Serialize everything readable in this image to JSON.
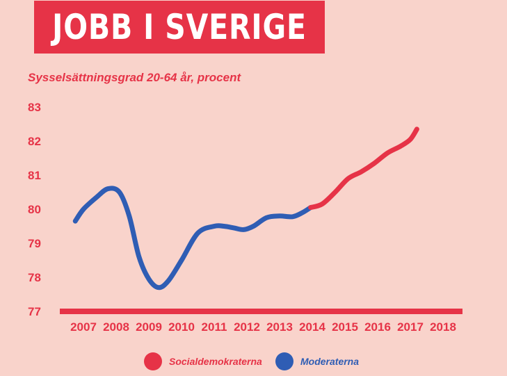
{
  "header": {
    "title": "JOBB I SVERIGE"
  },
  "colors": {
    "background": "#f9d3cb",
    "accent": "#e63347",
    "blue": "#2f5db4"
  },
  "chart_data": {
    "type": "line",
    "title": "JOBB I SVERIGE",
    "ylabel": "Sysselsättningsgrad 20-64 år, procent",
    "xlabel": "",
    "ylim": [
      77,
      83
    ],
    "y_ticks": [
      "83",
      "82",
      "81",
      "80",
      "79",
      "78",
      "77"
    ],
    "x_ticks": [
      "2007",
      "2008",
      "2009",
      "2010",
      "2011",
      "2012",
      "2013",
      "2014",
      "2015",
      "2016",
      "2017",
      "2018"
    ],
    "series": [
      {
        "name": "Moderaterna",
        "color": "#2f5db4",
        "points": [
          [
            2006.75,
            79.65
          ],
          [
            2007.0,
            80.0
          ],
          [
            2007.4,
            80.35
          ],
          [
            2007.75,
            80.6
          ],
          [
            2008.1,
            80.5
          ],
          [
            2008.4,
            79.8
          ],
          [
            2008.7,
            78.6
          ],
          [
            2009.0,
            77.95
          ],
          [
            2009.3,
            77.7
          ],
          [
            2009.6,
            77.9
          ],
          [
            2010.0,
            78.5
          ],
          [
            2010.5,
            79.3
          ],
          [
            2011.0,
            79.5
          ],
          [
            2011.3,
            79.5
          ],
          [
            2011.6,
            79.45
          ],
          [
            2011.9,
            79.4
          ],
          [
            2012.2,
            79.5
          ],
          [
            2012.6,
            79.75
          ],
          [
            2013.0,
            79.8
          ],
          [
            2013.4,
            79.78
          ],
          [
            2013.7,
            79.9
          ],
          [
            2013.95,
            80.05
          ]
        ]
      },
      {
        "name": "Socialdemokraterna",
        "color": "#e63347",
        "points": [
          [
            2013.95,
            80.05
          ],
          [
            2014.3,
            80.15
          ],
          [
            2014.7,
            80.5
          ],
          [
            2015.1,
            80.9
          ],
          [
            2015.5,
            81.1
          ],
          [
            2015.9,
            81.35
          ],
          [
            2016.3,
            81.65
          ],
          [
            2016.7,
            81.85
          ],
          [
            2017.0,
            82.05
          ],
          [
            2017.2,
            82.35
          ]
        ]
      }
    ],
    "legend": {
      "position": "bottom",
      "items": [
        {
          "label": "Socialdemokraterna",
          "color": "#e63347"
        },
        {
          "label": "Moderaterna",
          "color": "#2f5db4"
        }
      ]
    }
  }
}
